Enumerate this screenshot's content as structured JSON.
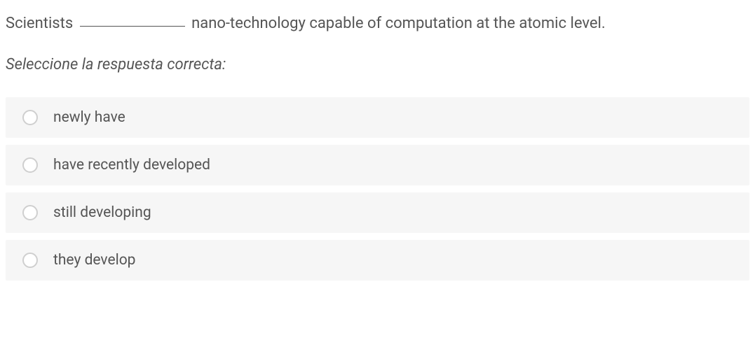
{
  "question": {
    "prefix": "Scientists ",
    "suffix": " nano-technology capable of computation at the atomic level."
  },
  "instruction": "Seleccione la respuesta correcta:",
  "options": [
    {
      "label": "newly have"
    },
    {
      "label": "have recently developed"
    },
    {
      "label": "still developing"
    },
    {
      "label": "they develop"
    }
  ],
  "colors": {
    "option_bg": "#f6f6f6",
    "text": "#555555",
    "radio_border": "#cfcfcf",
    "page_bg": "#ffffff"
  },
  "typography": {
    "question_fontsize": 22,
    "instruction_fontsize": 22,
    "option_fontsize": 21
  }
}
